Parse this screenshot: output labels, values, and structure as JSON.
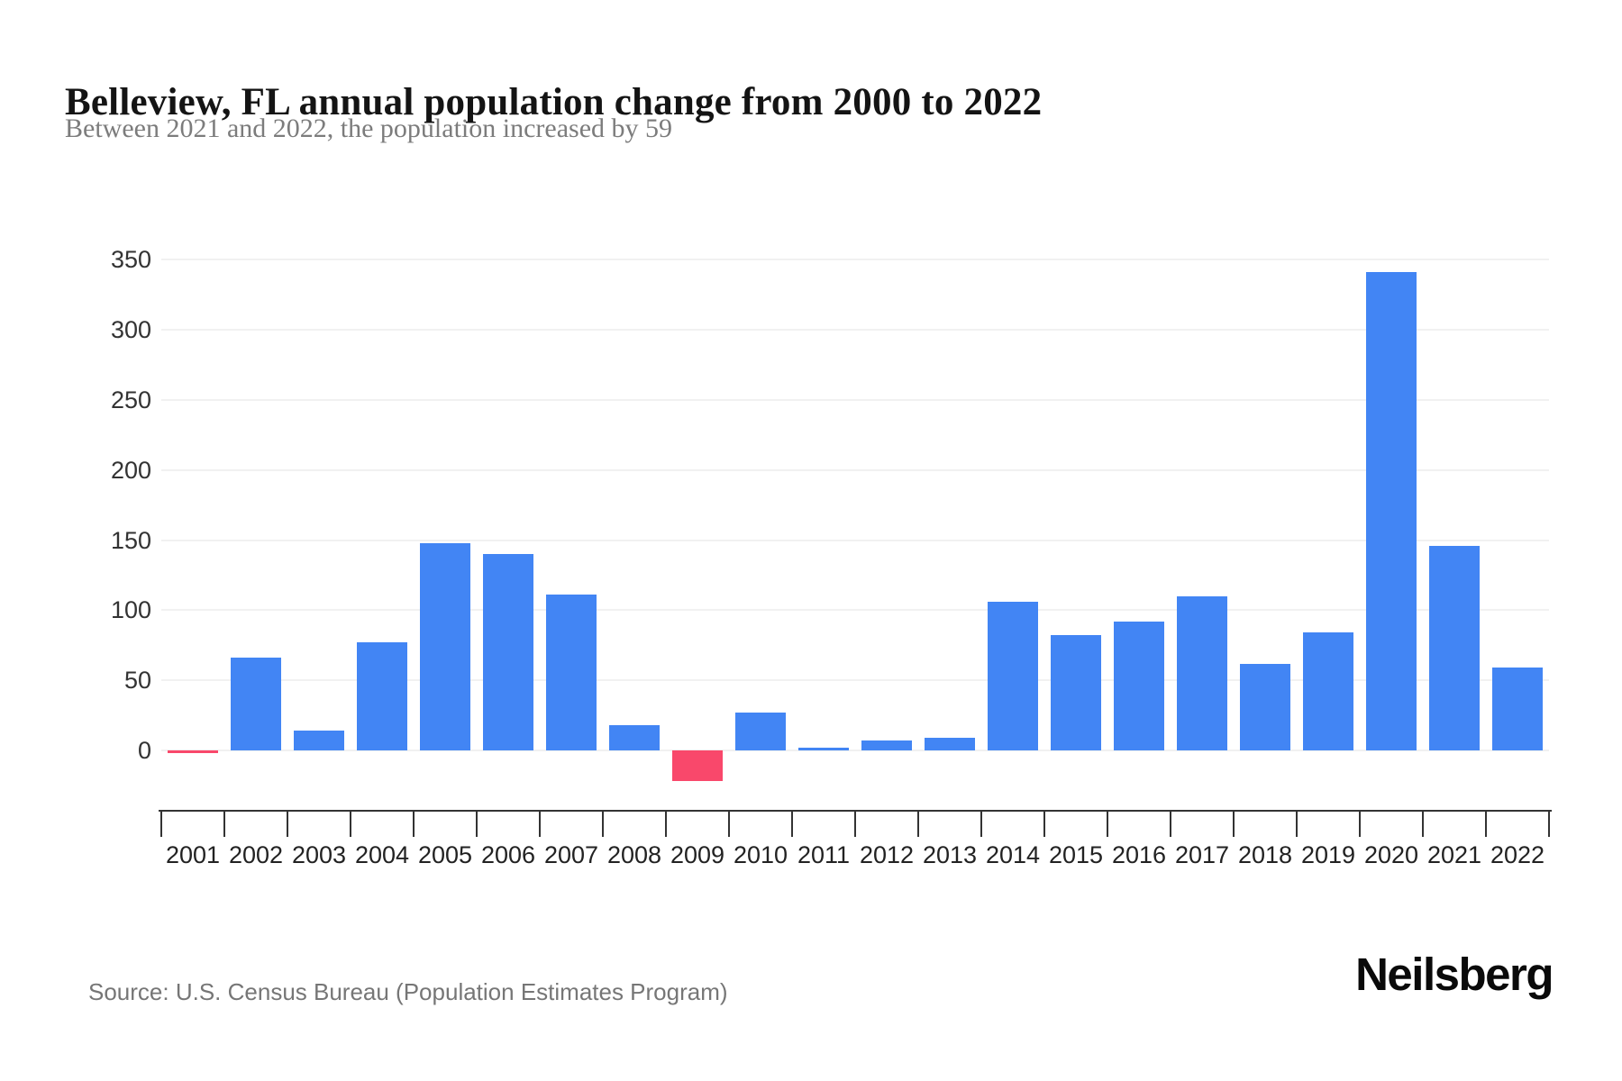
{
  "title": "Belleview, FL annual population change from 2000 to 2022",
  "subtitle": "Between 2021 and 2022, the population increased by 59",
  "source_note": "Source: U.S. Census Bureau (Population Estimates Program)",
  "brand": "Neilsberg",
  "colors": {
    "positive_bar": "#4285F4",
    "negative_bar": "#F9486B",
    "gridline": "#F1F1F1",
    "axis_line": "#333333",
    "y_label_text": "#333333",
    "x_label_text": "#222222",
    "title_text": "#141414",
    "subtitle_text": "#7C7C7C",
    "source_text": "#767676",
    "brand_text": "#0A0A0A"
  },
  "chart_data": {
    "type": "bar",
    "title": "Belleview, FL annual population change from 2000 to 2022",
    "subtitle": "Between 2021 and 2022, the population increased by 59",
    "categories": [
      "2001",
      "2002",
      "2003",
      "2004",
      "2005",
      "2006",
      "2007",
      "2008",
      "2009",
      "2010",
      "2011",
      "2012",
      "2013",
      "2014",
      "2015",
      "2016",
      "2017",
      "2018",
      "2019",
      "2020",
      "2021",
      "2022"
    ],
    "values": [
      -2,
      66,
      14,
      77,
      148,
      140,
      111,
      18,
      -22,
      27,
      2,
      7,
      9,
      106,
      82,
      92,
      110,
      62,
      84,
      341,
      146,
      59
    ],
    "xlabel": "",
    "ylabel": "",
    "yticks": [
      0,
      50,
      100,
      150,
      200,
      250,
      300,
      350
    ],
    "ylim": [
      -40,
      360
    ],
    "grid": true,
    "legend": false,
    "color_rule": "blue bars for population increase, red bars for population decrease"
  }
}
